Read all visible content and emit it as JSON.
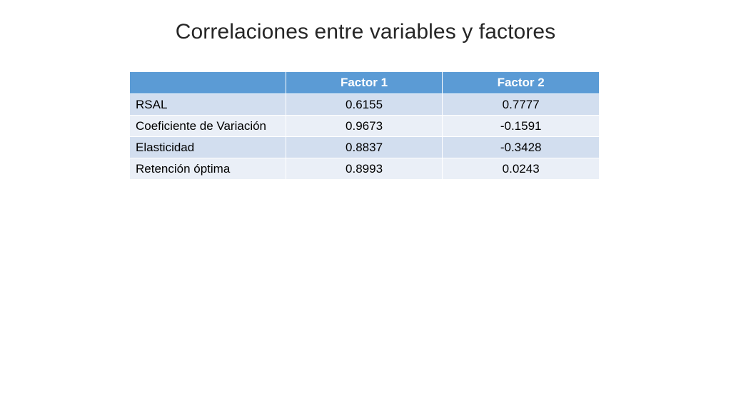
{
  "slide": {
    "title": "Correlaciones entre variables y factores"
  },
  "table": {
    "headers": [
      "",
      "Factor 1",
      "Factor 2"
    ],
    "rows": [
      {
        "variable": "RSAL",
        "factor1": "0.6155",
        "factor2": " 0.7777"
      },
      {
        "variable": "Coeficiente de Variación",
        "factor1": "0.9673",
        "factor2": "-0.1591"
      },
      {
        "variable": "Elasticidad",
        "factor1": "0.8837",
        "factor2": "-0.3428"
      },
      {
        "variable": "Retención óptima",
        "factor1": "0.8993",
        "factor2": " 0.0243"
      }
    ]
  },
  "colors": {
    "header_bg": "#5b9bd5",
    "row_dark": "#d2deef",
    "row_light": "#eaeff7",
    "title_text": "#262626"
  }
}
